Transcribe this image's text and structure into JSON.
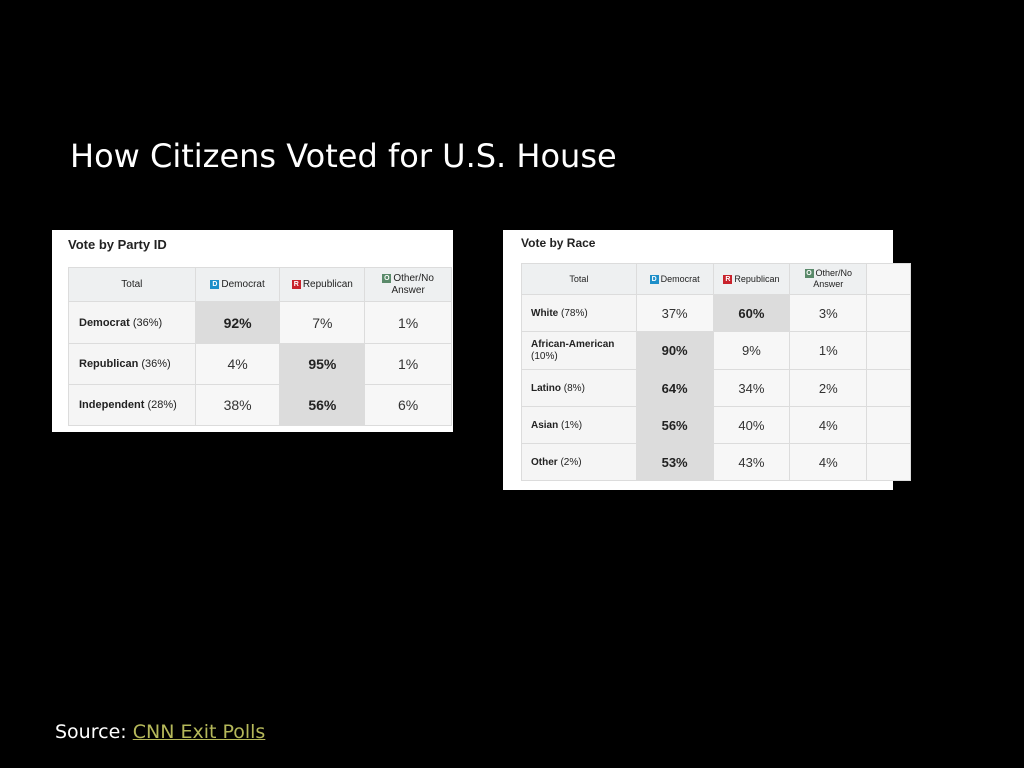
{
  "slide": {
    "title": "How Citizens Voted for U.S. House",
    "source_label": "Source:",
    "source_link": "CNN Exit Polls"
  },
  "colors": {
    "democrat": "#1e8fc9",
    "republican": "#c8232c",
    "other": "#5a8a6a",
    "source_link": "#b5b85a"
  },
  "party_table": {
    "title": "Vote by Party ID",
    "headers": {
      "total": "Total",
      "democrat_badge": "D",
      "democrat": "Democrat",
      "republican_badge": "R",
      "republican": "Republican",
      "other_badge": "O",
      "other_line1": "Other/No",
      "other_line2": "Answer"
    },
    "rows": [
      {
        "label": "Democrat",
        "pct": "(36%)",
        "dem": "92%",
        "rep": "7%",
        "oth": "1%"
      },
      {
        "label": "Republican",
        "pct": "(36%)",
        "dem": "4%",
        "rep": "95%",
        "oth": "1%"
      },
      {
        "label": "Independent",
        "pct": "(28%)",
        "dem": "38%",
        "rep": "56%",
        "oth": "6%"
      }
    ]
  },
  "race_table": {
    "title": "Vote by Race",
    "headers": {
      "total": "Total",
      "democrat_badge": "D",
      "democrat": "Democrat",
      "republican_badge": "R",
      "republican": "Republican",
      "other_badge": "O",
      "other_line1": "Other/No",
      "other_line2": "Answer"
    },
    "rows": [
      {
        "label": "White",
        "pct": "(78%)",
        "dem": "37%",
        "rep": "60%",
        "oth": "3%"
      },
      {
        "label": "African-American",
        "pct": "(10%)",
        "dem": "90%",
        "rep": "9%",
        "oth": "1%"
      },
      {
        "label": "Latino",
        "pct": "(8%)",
        "dem": "64%",
        "rep": "34%",
        "oth": "2%"
      },
      {
        "label": "Asian",
        "pct": "(1%)",
        "dem": "56%",
        "rep": "40%",
        "oth": "4%"
      },
      {
        "label": "Other",
        "pct": "(2%)",
        "dem": "53%",
        "rep": "43%",
        "oth": "4%"
      }
    ]
  }
}
